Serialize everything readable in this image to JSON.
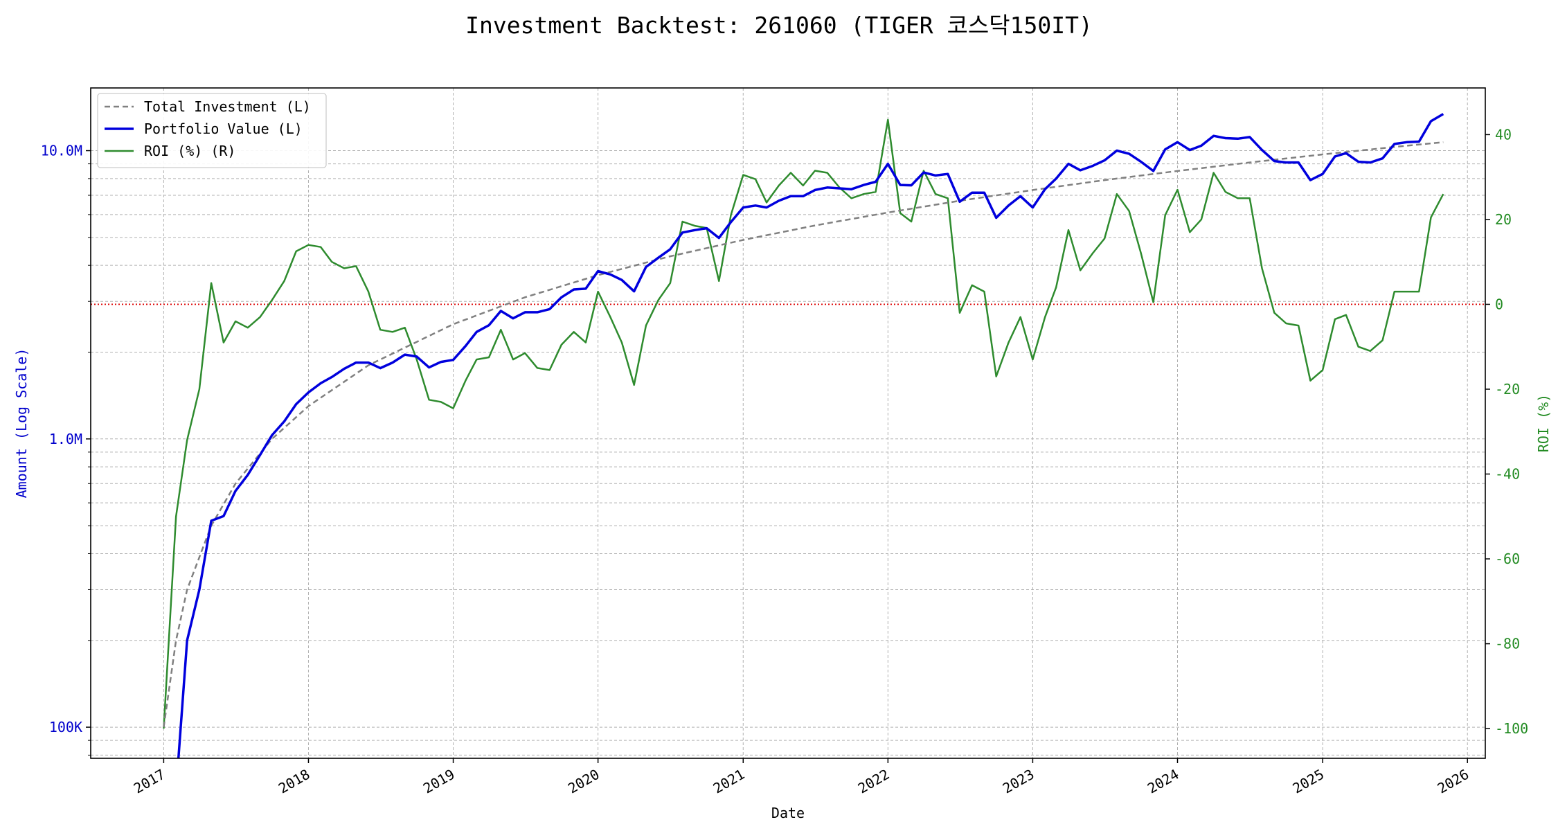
{
  "chart_data": {
    "type": "line",
    "title": "Investment Backtest: 261060 (TIGER 코스닥150IT)",
    "xlabel": "Date",
    "ylabel_left": "Amount (Log Scale)",
    "ylabel_right": "ROI (%)",
    "x_ticks": [
      "2017",
      "2018",
      "2019",
      "2020",
      "2021",
      "2022",
      "2023",
      "2024",
      "2025",
      "2026"
    ],
    "y_left_ticks": [
      {
        "value": 100000,
        "label": "100K"
      },
      {
        "value": 1000000,
        "label": "1.0M"
      },
      {
        "value": 10000000,
        "label": "10.0M"
      }
    ],
    "y_right_ticks": [
      -100,
      -80,
      -60,
      -40,
      -20,
      0,
      20,
      40
    ],
    "xlim": [
      "2016-07-01",
      "2026-02-15"
    ],
    "ylim_left": [
      78000,
      16500000
    ],
    "ylim_right": [
      -107,
      51
    ],
    "y_left_scale": "log",
    "grid": true,
    "legend_position": "top-left",
    "zero_line_right": 0,
    "colors": {
      "total": "#808080",
      "portfolio": "#0000dd",
      "roi": "#2e8b2e",
      "zero": "#dd0000",
      "left_axis_text": "#0000cc",
      "right_axis_text": "#228b22"
    },
    "series": [
      {
        "name": "Total Investment (L)",
        "axis": "left",
        "style": "dashed",
        "x": [
          "2017-01-01",
          "2017-02-01",
          "2017-03-01",
          "2017-05-01",
          "2017-07-01",
          "2017-10-01",
          "2018-01-01",
          "2018-06-01",
          "2019-01-01",
          "2019-07-01",
          "2020-01-01",
          "2020-07-01",
          "2021-01-01",
          "2021-07-01",
          "2022-01-01",
          "2022-07-01",
          "2023-01-01",
          "2023-07-01",
          "2024-01-01",
          "2024-07-01",
          "2025-01-01",
          "2025-07-01",
          "2025-11-01"
        ],
        "values": [
          100000,
          200000,
          300000,
          500000,
          700000,
          1000000,
          1300000,
          1800000,
          2500000,
          3100000,
          3700000,
          4300000,
          4900000,
          5500000,
          6100000,
          6700000,
          7300000,
          7900000,
          8500000,
          9100000,
          9700000,
          10300000,
          10700000
        ]
      },
      {
        "name": "Portfolio Value (L)",
        "axis": "left",
        "style": "solid",
        "x": [
          "2017-02-01",
          "2017-03-01",
          "2017-04-01",
          "2017-05-01",
          "2017-06-01",
          "2017-07-01",
          "2017-08-01",
          "2017-09-01",
          "2017-10-01",
          "2017-11-01",
          "2017-12-01",
          "2018-01-01",
          "2018-02-01",
          "2018-03-01",
          "2018-04-01",
          "2018-05-01",
          "2018-06-01",
          "2018-07-01",
          "2018-08-01",
          "2018-09-01",
          "2018-10-01",
          "2018-11-01",
          "2018-12-01",
          "2019-01-01",
          "2019-02-01",
          "2019-03-01",
          "2019-04-01",
          "2019-05-01",
          "2019-06-01",
          "2019-07-01",
          "2019-08-01",
          "2019-09-01",
          "2019-10-01",
          "2019-11-01",
          "2019-12-01",
          "2020-01-01",
          "2020-02-01",
          "2020-03-01",
          "2020-04-01",
          "2020-05-01",
          "2020-06-01",
          "2020-07-01",
          "2020-08-01",
          "2020-09-01",
          "2020-10-01",
          "2020-11-01",
          "2020-12-01",
          "2021-01-01",
          "2021-02-01",
          "2021-03-01",
          "2021-04-01",
          "2021-05-01",
          "2021-06-01",
          "2021-07-01",
          "2021-08-01",
          "2021-09-01",
          "2021-10-01",
          "2021-11-01",
          "2021-12-01",
          "2022-01-01",
          "2022-02-01",
          "2022-03-01",
          "2022-04-01",
          "2022-05-01",
          "2022-06-01",
          "2022-07-01",
          "2022-08-01",
          "2022-09-01",
          "2022-10-01",
          "2022-11-01",
          "2022-12-01",
          "2023-01-01",
          "2023-02-01",
          "2023-03-01",
          "2023-04-01",
          "2023-05-01",
          "2023-06-01",
          "2023-07-01",
          "2023-08-01",
          "2023-09-01",
          "2023-10-01",
          "2023-11-01",
          "2023-12-01",
          "2024-01-01",
          "2024-02-01",
          "2024-03-01",
          "2024-04-01",
          "2024-05-01",
          "2024-06-01",
          "2024-07-01",
          "2024-08-01",
          "2024-09-01",
          "2024-10-01",
          "2024-11-01",
          "2024-12-01",
          "2025-01-01",
          "2025-02-01",
          "2025-03-01",
          "2025-04-01",
          "2025-05-01",
          "2025-06-01",
          "2025-07-01",
          "2025-08-01",
          "2025-09-01",
          "2025-10-01",
          "2025-11-01"
        ],
        "values": [
          60000,
          200000,
          300000,
          520000,
          540000,
          660000,
          750000,
          880000,
          1030000,
          1150000,
          1320000,
          1450000,
          1560000,
          1640000,
          1750000,
          1840000,
          1840000,
          1760000,
          1840000,
          1960000,
          1930000,
          1770000,
          1850000,
          1880000,
          2100000,
          2350000,
          2480000,
          2780000,
          2620000,
          2750000,
          2750000,
          2820000,
          3100000,
          3300000,
          3320000,
          3820000,
          3720000,
          3560000,
          3250000,
          3950000,
          4250000,
          4550000,
          5200000,
          5300000,
          5380000,
          4980000,
          5650000,
          6350000,
          6450000,
          6350000,
          6700000,
          6950000,
          6950000,
          7300000,
          7450000,
          7400000,
          7350000,
          7600000,
          7800000,
          9000000,
          7600000,
          7580000,
          8400000,
          8200000,
          8300000,
          6650000,
          7150000,
          7150000,
          5850000,
          6450000,
          6950000,
          6350000,
          7350000,
          8000000,
          9000000,
          8550000,
          8850000,
          9250000,
          10000000,
          9750000,
          9150000,
          8500000,
          10100000,
          10700000,
          10050000,
          10400000,
          11250000,
          11050000,
          11000000,
          11150000,
          10050000,
          9200000,
          9100000,
          9100000,
          7900000,
          8300000,
          9550000,
          9800000,
          9150000,
          9100000,
          9400000,
          10550000,
          10700000,
          10750000,
          12650000,
          13400000
        ]
      },
      {
        "name": "ROI (%) (R)",
        "axis": "right",
        "style": "solid",
        "x": [
          "2017-01-01",
          "2017-02-01",
          "2017-03-01",
          "2017-04-01",
          "2017-05-01",
          "2017-06-01",
          "2017-07-01",
          "2017-08-01",
          "2017-09-01",
          "2017-10-01",
          "2017-11-01",
          "2017-12-01",
          "2018-01-01",
          "2018-02-01",
          "2018-03-01",
          "2018-04-01",
          "2018-05-01",
          "2018-06-01",
          "2018-07-01",
          "2018-08-01",
          "2018-09-01",
          "2018-10-01",
          "2018-11-01",
          "2018-12-01",
          "2019-01-01",
          "2019-02-01",
          "2019-03-01",
          "2019-04-01",
          "2019-05-01",
          "2019-06-01",
          "2019-07-01",
          "2019-08-01",
          "2019-09-01",
          "2019-10-01",
          "2019-11-01",
          "2019-12-01",
          "2020-01-01",
          "2020-02-01",
          "2020-03-01",
          "2020-04-01",
          "2020-05-01",
          "2020-06-01",
          "2020-07-01",
          "2020-08-01",
          "2020-09-01",
          "2020-10-01",
          "2020-11-01",
          "2020-12-01",
          "2021-01-01",
          "2021-02-01",
          "2021-03-01",
          "2021-04-01",
          "2021-05-01",
          "2021-06-01",
          "2021-07-01",
          "2021-08-01",
          "2021-09-01",
          "2021-10-01",
          "2021-11-01",
          "2021-12-01",
          "2022-01-01",
          "2022-02-01",
          "2022-03-01",
          "2022-04-01",
          "2022-05-01",
          "2022-06-01",
          "2022-07-01",
          "2022-08-01",
          "2022-09-01",
          "2022-10-01",
          "2022-11-01",
          "2022-12-01",
          "2023-01-01",
          "2023-02-01",
          "2023-03-01",
          "2023-04-01",
          "2023-05-01",
          "2023-06-01",
          "2023-07-01",
          "2023-08-01",
          "2023-09-01",
          "2023-10-01",
          "2023-11-01",
          "2023-12-01",
          "2024-01-01",
          "2024-02-01",
          "2024-03-01",
          "2024-04-01",
          "2024-05-01",
          "2024-06-01",
          "2024-07-01",
          "2024-08-01",
          "2024-09-01",
          "2024-10-01",
          "2024-11-01",
          "2024-12-01",
          "2025-01-01",
          "2025-02-01",
          "2025-03-01",
          "2025-04-01",
          "2025-05-01",
          "2025-06-01",
          "2025-07-01",
          "2025-08-01",
          "2025-09-01",
          "2025-10-01",
          "2025-11-01"
        ],
        "values": [
          -100,
          -50,
          -32,
          -20,
          5,
          -9,
          -4,
          -5.5,
          -3,
          1,
          5.5,
          12.5,
          14,
          13.5,
          10,
          8.5,
          9,
          3,
          -6,
          -6.5,
          -5.5,
          -13,
          -22.5,
          -23,
          -24.5,
          -18,
          -13,
          -12.5,
          -6,
          -13,
          -11.5,
          -15,
          -15.5,
          -9.5,
          -6.5,
          -9,
          3,
          -3,
          -9,
          -19,
          -5,
          1,
          5,
          19.5,
          18.5,
          18,
          5.5,
          21,
          30.5,
          29.5,
          24,
          28,
          31,
          28,
          31.5,
          31,
          27.5,
          25,
          26,
          26.5,
          43.5,
          21.5,
          19.5,
          31.5,
          26,
          25,
          -2,
          4.5,
          3,
          -17,
          -9,
          -3,
          -13,
          -3,
          4,
          17.5,
          8,
          12,
          15.5,
          26,
          22,
          12,
          0.5,
          21,
          27,
          17,
          20,
          31,
          26.5,
          25,
          25,
          8.5,
          -2,
          -4.5,
          -5,
          -18,
          -15.5,
          -3.5,
          -2.5,
          -10,
          -11,
          -8.5,
          3,
          3,
          3,
          20.5,
          26
        ]
      }
    ]
  }
}
